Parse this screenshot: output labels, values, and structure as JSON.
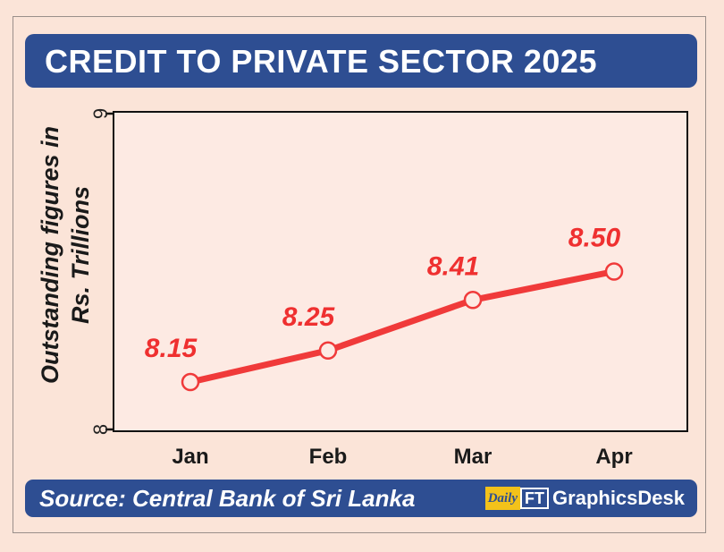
{
  "title": "CREDIT TO PRIVATE SECTOR 2025",
  "source": "Source: Central Bank of Sri Lanka",
  "brand": {
    "logo_daily": "Daily",
    "logo_ft": "FT",
    "name": "GraphicsDesk"
  },
  "colors": {
    "line": "#f03a3a",
    "label": "#ef3030",
    "banner": "#2e4e92",
    "background": "#fbe4d8"
  },
  "chart_data": {
    "type": "line",
    "title": "CREDIT TO PRIVATE SECTOR 2025",
    "categories": [
      "Jan",
      "Feb",
      "Mar",
      "Apr"
    ],
    "values": [
      8.15,
      8.25,
      8.41,
      8.5
    ],
    "data_labels": [
      "8.15",
      "8.25",
      "8.41",
      "8.50"
    ],
    "ylabel_lines": [
      "Outstanding figures in",
      "Rs. Trillions"
    ],
    "ylim": [
      8,
      9
    ],
    "y_ticks": [
      "8",
      "9"
    ],
    "grid": false,
    "legend": "none"
  }
}
